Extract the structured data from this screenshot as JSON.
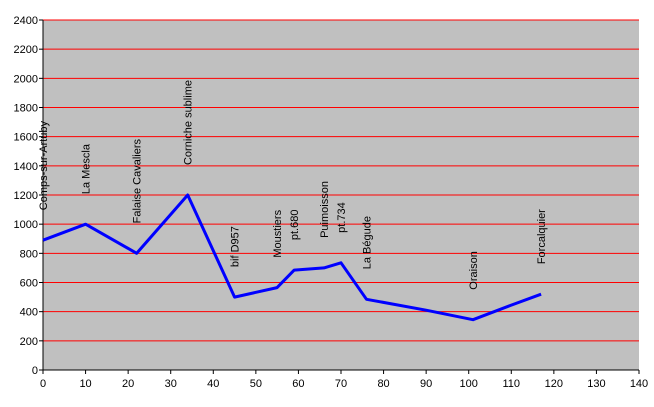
{
  "chart_data": {
    "type": "line",
    "x": [
      0,
      10,
      22,
      34,
      45,
      55,
      59,
      66,
      70,
      76,
      90,
      101,
      110,
      117
    ],
    "values": [
      890,
      1000,
      800,
      1200,
      500,
      565,
      685,
      700,
      735,
      485,
      410,
      345,
      445,
      520
    ],
    "point_labels": [
      "Comps-sur-Artuby",
      "La Mescla",
      "Falaise Cavaliers",
      "Corniche sublime",
      "bif D957",
      "Moustiers",
      "pt.680",
      "Puimoisson",
      "pt.734",
      "La Bégude",
      null,
      "Oraison",
      null,
      "Forcalquier"
    ],
    "color": "#0000ff",
    "xlim": [
      0,
      140
    ],
    "xticks": [
      0,
      10,
      20,
      30,
      40,
      50,
      60,
      70,
      80,
      90,
      100,
      110,
      120,
      130,
      140
    ],
    "ylim": [
      0,
      2400
    ],
    "yticks": [
      0,
      200,
      400,
      600,
      800,
      1000,
      1200,
      1400,
      1600,
      1800,
      2000,
      2200,
      2400
    ],
    "grid": true,
    "grid_color": "#ff0000",
    "background": "#c0c0c0"
  }
}
